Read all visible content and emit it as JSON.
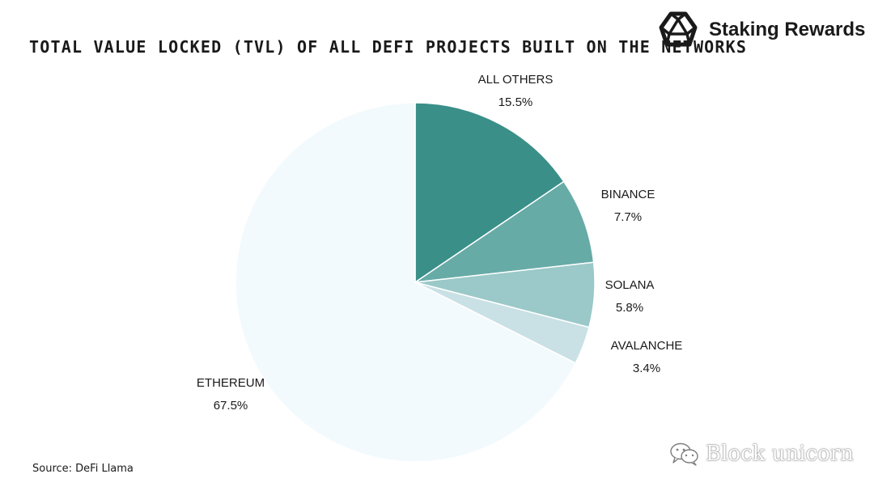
{
  "chart_data": {
    "type": "pie",
    "title": "TOTAL VALUE LOCKED (TVL) OF ALL DEFI PROJECTS BUILT ON THE NETWORKS",
    "slices": [
      {
        "label": "ALL OTHERS",
        "value": 15.5,
        "value_label": "15.5%",
        "color": "#3a8f89"
      },
      {
        "label": "BINANCE",
        "value": 7.7,
        "value_label": "7.7%",
        "color": "#67aba7"
      },
      {
        "label": "SOLANA",
        "value": 5.8,
        "value_label": "5.8%",
        "color": "#9bc8c8"
      },
      {
        "label": "AVALANCHE",
        "value": 3.4,
        "value_label": "3.4%",
        "color": "#c9e1e4"
      },
      {
        "label": "ETHEREUM",
        "value": 67.5,
        "value_label": "67.5%",
        "color": "#f3fafd"
      }
    ],
    "start": "12 o'clock",
    "direction": "clockwise"
  },
  "brand": {
    "name": "Staking Rewards",
    "logo_icon": "polyhedron-logo-icon"
  },
  "source": "Source: DeFi Llama",
  "watermark": {
    "text": "Block unicorn",
    "icon": "wechat-icon"
  }
}
